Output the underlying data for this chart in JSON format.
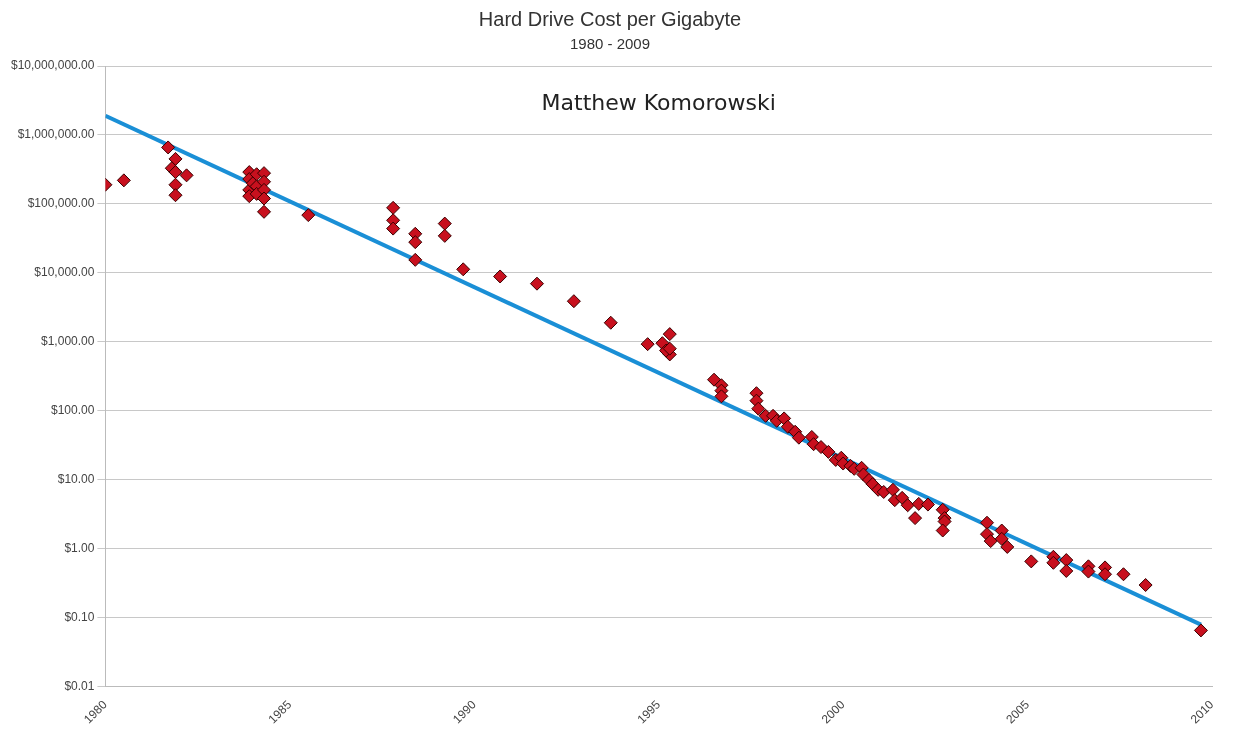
{
  "chart_data": {
    "type": "scatter",
    "title": "Hard Drive Cost per Gigabyte",
    "subtitle": "1980 - 2009",
    "annotations": [
      "Matthew Komorowski"
    ],
    "log": "y",
    "grid": "y",
    "xlim": [
      1980,
      2010
    ],
    "xticks": [
      1980,
      1985,
      1990,
      1995,
      2000,
      2005,
      2010
    ],
    "ylim": [
      0.01,
      10000000
    ],
    "yticks": [
      {
        "value": 0.01,
        "label": "$0.01"
      },
      {
        "value": 0.1,
        "label": "$0.10"
      },
      {
        "value": 1,
        "label": "$1.00"
      },
      {
        "value": 10,
        "label": "$10.00"
      },
      {
        "value": 100,
        "label": "$100.00"
      },
      {
        "value": 1000,
        "label": "$1,000.00"
      },
      {
        "value": 10000,
        "label": "$10,000.00"
      },
      {
        "value": 100000,
        "label": "$100,000.00"
      },
      {
        "value": 1000000,
        "label": "$1,000,000.00"
      },
      {
        "value": 10000000,
        "label": "$10,000,000.00"
      }
    ],
    "series": [
      {
        "marker": "diamond",
        "color": "#c8101e",
        "x": [
          1980,
          1980.5,
          1981.7,
          1981.9,
          1981.8,
          1981.9,
          1982.2,
          1981.9,
          1981.9,
          1983.9,
          1983.9,
          1983.9,
          1983.9,
          1984,
          1984.1,
          1984.1,
          1984.1,
          1984.3,
          1984.3,
          1984.3,
          1984.3,
          1984.3,
          1985.5,
          1987.8,
          1987.8,
          1987.8,
          1988.4,
          1988.4,
          1988.4,
          1989.2,
          1989.2,
          1989.7,
          1990.7,
          1991.7,
          1992.7,
          1993.7,
          1994.7,
          1995.1,
          1995.3,
          1995.3,
          1995.2,
          1995.3,
          1996.5,
          1996.7,
          1996.7,
          1996.7,
          1997.65,
          1997.65,
          1997.7,
          1997.9,
          1998.1,
          1998.2,
          1998.4,
          1998.5,
          1998.7,
          1998.8,
          1999.15,
          1999.2,
          1999.4,
          1999.6,
          1999.8,
          1999.95,
          2000,
          2000.2,
          2000.3,
          2000.5,
          2000.55,
          2000.7,
          2000.8,
          2000.95,
          2001.1,
          2001.35,
          2001.4,
          2001.6,
          2001.75,
          2001.95,
          2002.05,
          2002.3,
          2002.7,
          2002.75,
          2002.75,
          2002.7,
          2003.9,
          2003.9,
          2004,
          2004.3,
          2004.3,
          2004.45,
          2005.1,
          2005.7,
          2005.7,
          2006.05,
          2006.05,
          2006.65,
          2006.65,
          2007.1,
          2007.1,
          2007.6,
          2008.2,
          2009.7
        ],
        "values": [
          190000,
          220000,
          660000,
          450000,
          330000,
          290000,
          260000,
          190000,
          134000,
          290000,
          230000,
          160000,
          130000,
          200000,
          270000,
          180000,
          140000,
          280000,
          210000,
          160000,
          120000,
          77000,
          69000,
          88000,
          58000,
          44000,
          37000,
          28000,
          15500,
          52000,
          34500,
          11300,
          8900,
          7000,
          3900,
          1900,
          930,
          960,
          1300,
          660,
          750,
          800,
          284,
          236,
          197,
          163,
          181,
          141,
          108,
          85,
          85,
          72,
          78,
          59,
          50,
          41,
          42,
          33,
          30,
          25.5,
          19.5,
          21,
          17.3,
          16,
          14.5,
          15,
          12,
          10,
          8.7,
          7.2,
          6.7,
          7.2,
          5.1,
          5.5,
          4.3,
          2.8,
          4.5,
          4.4,
          3.7,
          2.8,
          2.5,
          1.85,
          2.4,
          1.64,
          1.3,
          1.85,
          1.4,
          1.07,
          0.66,
          0.77,
          0.63,
          0.69,
          0.48,
          0.56,
          0.47,
          0.54,
          0.43,
          0.43,
          0.3,
          0.066
        ]
      },
      {
        "type": "line",
        "marker": "none",
        "color": "#1a8fd6",
        "x": [
          1980,
          2009.7
        ],
        "values": [
          1900000,
          0.08
        ]
      }
    ]
  }
}
